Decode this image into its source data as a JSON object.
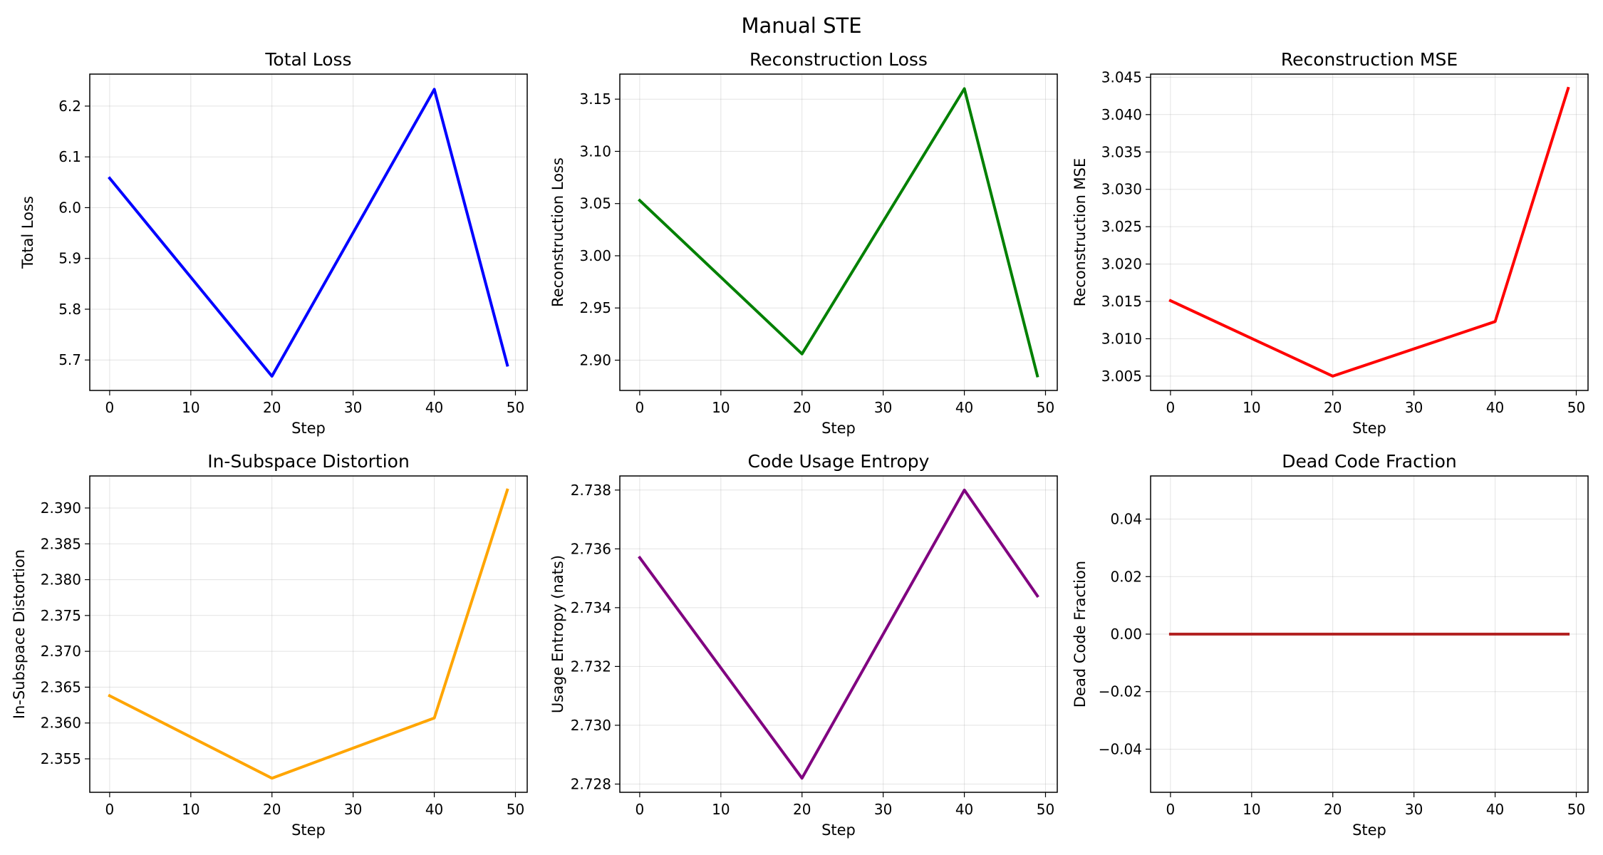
{
  "figure": {
    "title": "Manual STE"
  },
  "chart_data": [
    {
      "type": "line",
      "title": "Total Loss",
      "xlabel": "Step",
      "ylabel": "Total Loss",
      "x": [
        0,
        20,
        40,
        49
      ],
      "series": [
        {
          "values": [
            6.058,
            5.668,
            6.233,
            5.69
          ],
          "color": "#0000ff"
        }
      ],
      "xlim": [
        -2.45,
        51.45
      ],
      "ylim": [
        5.64,
        6.263
      ],
      "xticks": [
        0,
        10,
        20,
        30,
        40,
        50
      ],
      "xtick_labels": [
        "0",
        "10",
        "20",
        "30",
        "40",
        "50"
      ],
      "yticks": [
        5.7,
        5.8,
        5.9,
        6.0,
        6.1,
        6.2
      ],
      "ytick_labels": [
        "5.7",
        "5.8",
        "5.9",
        "6.0",
        "6.1",
        "6.2"
      ],
      "grid": true
    },
    {
      "type": "line",
      "title": "Reconstruction Loss",
      "xlabel": "Step",
      "ylabel": "Reconstruction Loss",
      "x": [
        0,
        20,
        40,
        49
      ],
      "series": [
        {
          "values": [
            3.053,
            2.906,
            3.16,
            2.885
          ],
          "color": "#008000"
        }
      ],
      "xlim": [
        -2.45,
        51.45
      ],
      "ylim": [
        2.871,
        3.174
      ],
      "xticks": [
        0,
        10,
        20,
        30,
        40,
        50
      ],
      "xtick_labels": [
        "0",
        "10",
        "20",
        "30",
        "40",
        "50"
      ],
      "yticks": [
        2.9,
        2.95,
        3.0,
        3.05,
        3.1,
        3.15
      ],
      "ytick_labels": [
        "2.90",
        "2.95",
        "3.00",
        "3.05",
        "3.10",
        "3.15"
      ],
      "grid": true
    },
    {
      "type": "line",
      "title": "Reconstruction MSE",
      "xlabel": "Step",
      "ylabel": "Reconstruction MSE",
      "x": [
        0,
        20,
        40,
        49
      ],
      "series": [
        {
          "values": [
            3.0151,
            3.005,
            3.0123,
            3.0435
          ],
          "color": "#ff0000"
        }
      ],
      "xlim": [
        -2.45,
        51.45
      ],
      "ylim": [
        3.00308,
        3.04542
      ],
      "xticks": [
        0,
        10,
        20,
        30,
        40,
        50
      ],
      "xtick_labels": [
        "0",
        "10",
        "20",
        "30",
        "40",
        "50"
      ],
      "yticks": [
        3.005,
        3.01,
        3.015,
        3.02,
        3.025,
        3.03,
        3.035,
        3.04,
        3.045
      ],
      "ytick_labels": [
        "3.005",
        "3.010",
        "3.015",
        "3.020",
        "3.025",
        "3.030",
        "3.035",
        "3.040",
        "3.045"
      ],
      "grid": true
    },
    {
      "type": "line",
      "title": "In-Subspace Distortion",
      "xlabel": "Step",
      "ylabel": "In-Subspace Distortion",
      "x": [
        0,
        20,
        40,
        49
      ],
      "series": [
        {
          "values": [
            2.3638,
            2.3523,
            2.3607,
            2.3925
          ],
          "color": "#ffa500"
        }
      ],
      "xlim": [
        -2.45,
        51.45
      ],
      "ylim": [
        2.35033,
        2.39447
      ],
      "xticks": [
        0,
        10,
        20,
        30,
        40,
        50
      ],
      "xtick_labels": [
        "0",
        "10",
        "20",
        "30",
        "40",
        "50"
      ],
      "yticks": [
        2.355,
        2.36,
        2.365,
        2.37,
        2.375,
        2.38,
        2.385,
        2.39
      ],
      "ytick_labels": [
        "2.355",
        "2.360",
        "2.365",
        "2.370",
        "2.375",
        "2.380",
        "2.385",
        "2.390"
      ],
      "grid": true
    },
    {
      "type": "line",
      "title": "Code Usage Entropy",
      "xlabel": "Step",
      "ylabel": "Usage Entropy (nats)",
      "x": [
        0,
        20,
        40,
        49
      ],
      "series": [
        {
          "values": [
            2.7357,
            2.7282,
            2.738,
            2.7344
          ],
          "color": "#800080"
        }
      ],
      "xlim": [
        -2.45,
        51.45
      ],
      "ylim": [
        2.72772,
        2.73848
      ],
      "xticks": [
        0,
        10,
        20,
        30,
        40,
        50
      ],
      "xtick_labels": [
        "0",
        "10",
        "20",
        "30",
        "40",
        "50"
      ],
      "yticks": [
        2.728,
        2.73,
        2.732,
        2.734,
        2.736,
        2.738
      ],
      "ytick_labels": [
        "2.728",
        "2.730",
        "2.732",
        "2.734",
        "2.736",
        "2.738"
      ],
      "grid": true
    },
    {
      "type": "line",
      "title": "Dead Code Fraction",
      "xlabel": "Step",
      "ylabel": "Dead Code Fraction",
      "x": [
        0,
        49
      ],
      "series": [
        {
          "values": [
            0.0,
            0.0
          ],
          "color": "#b22222"
        }
      ],
      "xlim": [
        -2.45,
        51.45
      ],
      "ylim": [
        -0.055,
        0.055
      ],
      "xticks": [
        0,
        10,
        20,
        30,
        40,
        50
      ],
      "xtick_labels": [
        "0",
        "10",
        "20",
        "30",
        "40",
        "50"
      ],
      "yticks": [
        -0.04,
        -0.02,
        0.0,
        0.02,
        0.04
      ],
      "ytick_labels": [
        "−0.04",
        "−0.02",
        "0.00",
        "0.02",
        "0.04"
      ],
      "grid": true
    }
  ]
}
